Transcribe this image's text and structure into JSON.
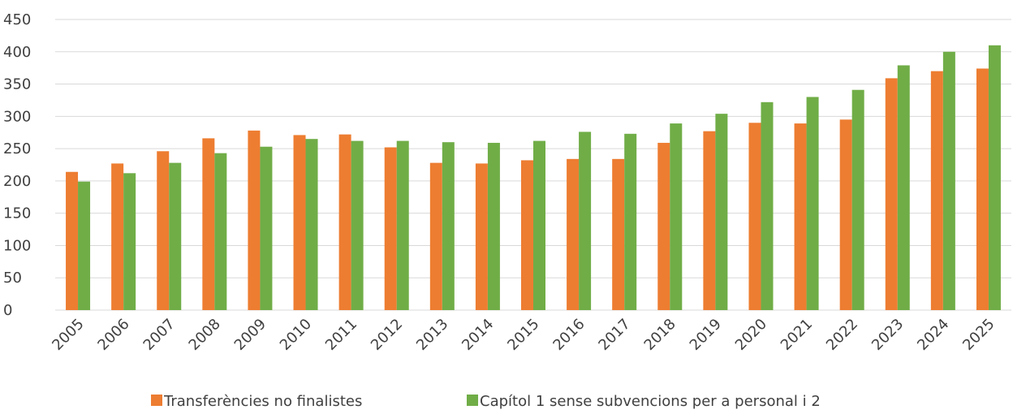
{
  "chart_data": {
    "type": "bar",
    "categories": [
      "2005",
      "2006",
      "2007",
      "2008",
      "2009",
      "2010",
      "2011",
      "2012",
      "2013",
      "2014",
      "2015",
      "2016",
      "2017",
      "2018",
      "2019",
      "2020",
      "2021",
      "2022",
      "2023",
      "2024",
      "2025"
    ],
    "series": [
      {
        "name": "Transferències no finalistes",
        "color": "#ed7d31",
        "values": [
          214,
          227,
          246,
          266,
          278,
          271,
          272,
          252,
          228,
          227,
          232,
          234,
          234,
          259,
          277,
          290,
          289,
          295,
          359,
          370,
          374
        ]
      },
      {
        "name": "Capítol 1 sense subvencions per a personal i 2",
        "color": "#70ad47",
        "values": [
          199,
          212,
          228,
          243,
          253,
          265,
          262,
          262,
          260,
          259,
          262,
          276,
          273,
          289,
          304,
          322,
          330,
          341,
          379,
          400,
          410
        ]
      }
    ],
    "ylim": [
      0,
      450
    ],
    "yticks": [
      0,
      50,
      100,
      150,
      200,
      250,
      300,
      350,
      400,
      450
    ],
    "grid": true,
    "legend": "bottom"
  }
}
